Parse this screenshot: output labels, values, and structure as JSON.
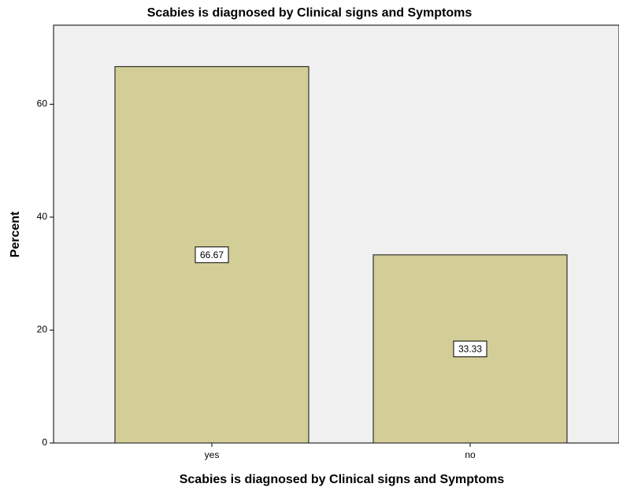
{
  "chart_data": {
    "type": "bar",
    "title": "Scabies is diagnosed by Clinical signs and Symptoms",
    "x_label": "Scabies is diagnosed by Clinical signs and Symptoms",
    "y_label": "Percent",
    "categories": [
      "yes",
      "no"
    ],
    "values": [
      66.67,
      33.33
    ],
    "color": "#d3ce97",
    "ylim": [
      0,
      74
    ],
    "yticks": [
      0,
      20,
      40,
      60
    ],
    "grid": false
  }
}
